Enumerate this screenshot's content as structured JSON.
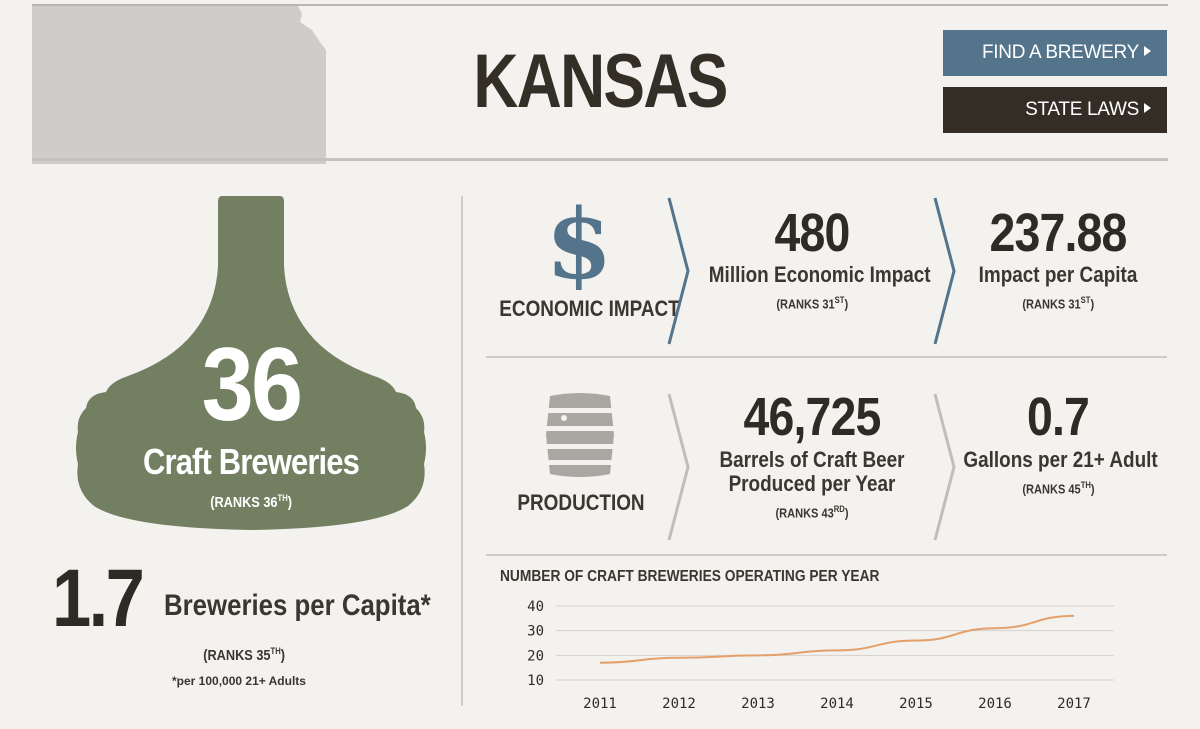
{
  "header": {
    "state_name": "KANSAS",
    "find_brewery_label": "FIND A BREWERY",
    "state_laws_label": "STATE LAWS"
  },
  "breweries": {
    "count": "36",
    "label": "Craft Breweries",
    "rank_prefix": "(RANKS 36",
    "rank_suffix": "TH",
    "rank_close": ")"
  },
  "per_capita": {
    "value": "1.7",
    "label": "Breweries per Capita*",
    "rank_prefix": "(RANKS 35",
    "rank_suffix": "TH",
    "rank_close": ")",
    "footnote": "*per 100,000 21+ Adults"
  },
  "economic": {
    "category": "ECONOMIC IMPACT",
    "icon": "dollar-icon",
    "impact_value": "480",
    "impact_label": "Million Economic Impact",
    "impact_rank_prefix": "(RANKS 31",
    "impact_rank_suffix": "ST",
    "capita_value": "237.88",
    "capita_label": "Impact per Capita",
    "capita_rank_prefix": "(RANKS 31",
    "capita_rank_suffix": "ST",
    "rank_close": ")"
  },
  "production": {
    "category": "PRODUCTION",
    "icon": "barrel-icon",
    "barrels_value": "46,725",
    "barrels_label_line1": "Barrels of Craft Beer",
    "barrels_label_line2": "Produced per Year",
    "barrels_rank_prefix": "(RANKS 43",
    "barrels_rank_suffix": "RD",
    "gallons_value": "0.7",
    "gallons_label": "Gallons per 21+ Adult",
    "gallons_rank_prefix": "(RANKS 45",
    "gallons_rank_suffix": "TH",
    "rank_close": ")"
  },
  "colors": {
    "bottle_green": "#737f61",
    "blue_accent": "#54748c",
    "dark_brown": "#332d25",
    "line_orange": "#e3a06b"
  },
  "chart_data": {
    "type": "line",
    "title": "NUMBER OF CRAFT BREWERIES OPERATING PER YEAR",
    "x": [
      "2011",
      "2012",
      "2013",
      "2014",
      "2015",
      "2016",
      "2017"
    ],
    "series": [
      {
        "values": [
          17,
          19,
          20,
          22,
          26,
          31,
          36
        ]
      }
    ],
    "yticks": [
      10,
      20,
      30,
      40
    ],
    "ylim": [
      10,
      40
    ],
    "xlabel": "",
    "ylabel": "",
    "grid": true
  }
}
